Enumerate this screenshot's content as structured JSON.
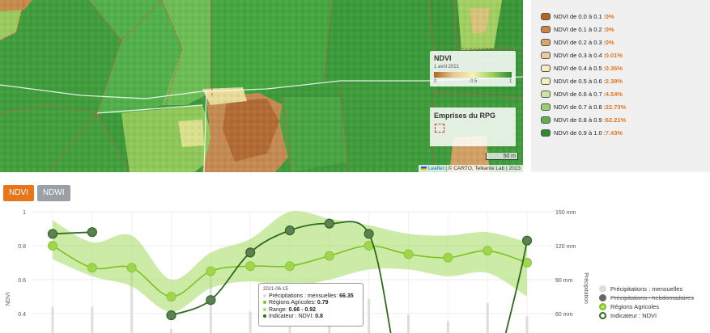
{
  "map": {
    "ndvi_card": {
      "title": "NDVI",
      "date": "1 avril 2021",
      "ticks": [
        "0",
        "0.5",
        "1"
      ]
    },
    "rpg_card": {
      "title": "Emprises du RPG"
    },
    "scale_label": "50 m",
    "attribution": {
      "leaflet": "Leaflet",
      "rest": " | © CARTO, Telkante Lab | 2023"
    }
  },
  "legend": [
    {
      "label": "NDVI de 0.0 à 0.1 : ",
      "pct": "0%",
      "color": "#b5651d"
    },
    {
      "label": "NDVI de 0.1 à 0.2 : ",
      "pct": "0%",
      "color": "#c88442"
    },
    {
      "label": "NDVI de 0.2 à 0.3 : ",
      "pct": "0%",
      "color": "#d9a66a"
    },
    {
      "label": "NDVI de 0.3 à 0.4 : ",
      "pct": "0.01%",
      "color": "#ebcb98"
    },
    {
      "label": "NDVI de 0.4 à 0.5 : ",
      "pct": "0.36%",
      "color": "#f7ecc0"
    },
    {
      "label": "NDVI de 0.5 à 0.6 : ",
      "pct": "2.38%",
      "color": "#eef3b8"
    },
    {
      "label": "NDVI de 0.6 à 0.7 : ",
      "pct": "4.54%",
      "color": "#c9e69a"
    },
    {
      "label": "NDVI de 0.7 à 0.8 : ",
      "pct": "22.73%",
      "color": "#96d16e"
    },
    {
      "label": "NDVI de 0.8 à 0.9 : ",
      "pct": "62.21%",
      "color": "#5cb24a"
    },
    {
      "label": "NDVI de 0.9 à 1.0 : ",
      "pct": "7.43%",
      "color": "#2e8b2e"
    }
  ],
  "tabs": [
    {
      "label": "NDVI",
      "active": true
    },
    {
      "label": "NDWI",
      "active": false
    }
  ],
  "chart_data": {
    "type": "line",
    "ylabel": "NDVI",
    "y2label": "Précipitation",
    "yticks": [
      "1",
      "0.8",
      "0.6",
      "0.4"
    ],
    "y2ticks": [
      "150 mm",
      "120 mm",
      "90 mm",
      "60 mm"
    ],
    "ylim": [
      0.3,
      1.0
    ],
    "y2lim": [
      0,
      150
    ],
    "x": [
      1,
      2,
      3,
      4,
      5,
      6,
      7,
      8,
      9,
      10,
      11,
      12,
      13
    ],
    "series": [
      {
        "name": "Régions Agricoles",
        "values": [
          0.8,
          0.67,
          0.67,
          0.5,
          0.65,
          0.68,
          0.68,
          0.74,
          0.8,
          0.75,
          0.73,
          0.77,
          0.7
        ]
      },
      {
        "name": "Range",
        "lower": [
          0.72,
          0.62,
          0.56,
          0.41,
          0.55,
          0.59,
          0.56,
          0.6,
          0.66,
          0.66,
          0.62,
          0.64,
          0.5
        ],
        "upper": [
          0.95,
          0.82,
          0.86,
          0.6,
          0.76,
          0.84,
          1.0,
          0.96,
          0.92,
          0.87,
          0.86,
          0.88,
          0.82
        ]
      },
      {
        "name": "Indicateur : NDVI",
        "values": [
          0.87,
          0.88,
          null,
          0.39,
          0.48,
          0.76,
          0.89,
          0.93,
          0.87,
          null,
          null,
          null,
          0.83
        ]
      },
      {
        "name": "Précipitations : mensuelles",
        "values": [
          30,
          30,
          75,
          2,
          80,
          24,
          30,
          60,
          40,
          20,
          12,
          35,
          18
        ]
      }
    ]
  },
  "chart_legend": [
    {
      "label": "Précipitations : mensuelles",
      "color": "#dddddd",
      "fill": "#dddddd",
      "strike": false
    },
    {
      "label": "Précipitations : hebdomadaires",
      "color": "#555555",
      "fill": "#666666",
      "strike": true
    },
    {
      "label": "Régions Agricoles",
      "color": "#7cc322",
      "fill": "#b3e06a",
      "strike": false
    },
    {
      "label": "Indicateur : NDVI",
      "color": "#2d6a1f",
      "fill": "#ffffff",
      "strike": false
    }
  ],
  "tooltip": {
    "date": "2021-06-15",
    "precip_label": "Précipitations : mensuelles: ",
    "precip_value": "66.35",
    "regions_label": "Régions Agricoles: ",
    "regions_value": "0.79",
    "range_label": "Range: ",
    "range_value": "0.66 - 0.92",
    "indicateur_label": "Indicateur : NDVI: ",
    "indicateur_value": "0.8"
  }
}
